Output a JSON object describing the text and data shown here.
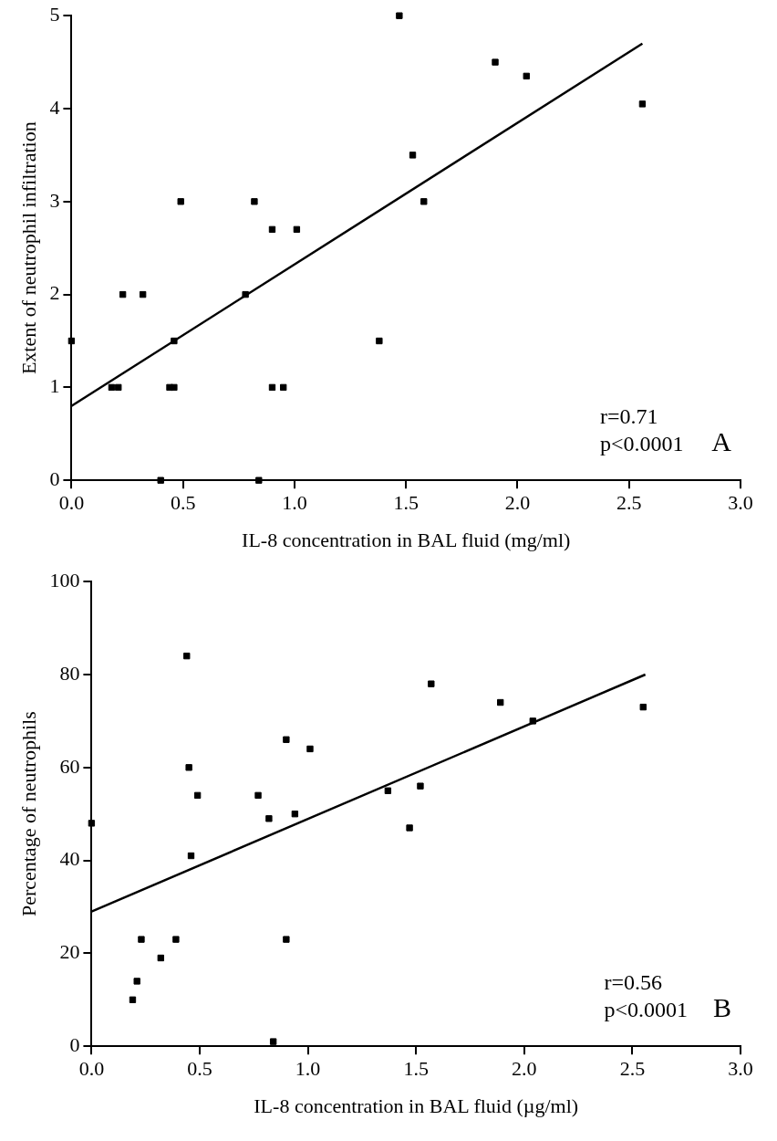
{
  "chart_data": [
    {
      "type": "scatter",
      "xlabel": "IL-8 concentration in BAL fluid (mg/ml)",
      "ylabel": "Extent of neutrophil infiltration",
      "xlim": [
        0,
        3
      ],
      "xticks": [
        {
          "value": 0,
          "label": "0.0"
        },
        {
          "value": 0.5,
          "label": "0.5"
        },
        {
          "value": 1,
          "label": "1.0"
        },
        {
          "value": 1.5,
          "label": "1.5"
        },
        {
          "value": 2,
          "label": "2.0"
        },
        {
          "value": 2.5,
          "label": "2.5"
        },
        {
          "value": 3,
          "label": "3.0"
        }
      ],
      "ylim": [
        0,
        5
      ],
      "yticks": [
        0,
        1,
        2,
        3,
        4,
        5
      ],
      "series": [
        {
          "marker": "square",
          "color": "#000000",
          "x": [
            0,
            0.18,
            0.21,
            0.23,
            0.32,
            0.4,
            0.44,
            0.46,
            0.46,
            0.49,
            0.78,
            0.82,
            0.84,
            0.9,
            0.9,
            0.95,
            1.01,
            1.38,
            1.47,
            1.53,
            1.58,
            1.9,
            2.04,
            2.56
          ],
          "values": [
            1.5,
            1,
            1,
            2,
            2,
            0,
            1,
            1,
            1.5,
            3,
            2,
            3,
            0,
            2.7,
            1,
            1,
            2.7,
            1.5,
            5,
            3.5,
            3,
            4.5,
            4.35,
            4.05
          ]
        },
        {
          "type": "line",
          "marker": "none",
          "color": "#000000",
          "x": [
            0,
            2.56
          ],
          "values": [
            0.8,
            4.7
          ]
        }
      ],
      "annotations": [
        "r=0.71",
        "p<0.0001",
        "A"
      ]
    },
    {
      "type": "scatter",
      "xlabel": "IL-8 concentration in BAL fluid (µg/ml)",
      "ylabel": "Percentage of neutrophils",
      "xlim": [
        0,
        3
      ],
      "xticks": [
        {
          "value": 0,
          "label": "0.0"
        },
        {
          "value": 0.5,
          "label": "0.5"
        },
        {
          "value": 1,
          "label": "1.0"
        },
        {
          "value": 1.5,
          "label": "1.5"
        },
        {
          "value": 2,
          "label": "2.0"
        },
        {
          "value": 2.5,
          "label": "2.5"
        },
        {
          "value": 3,
          "label": "3.0"
        }
      ],
      "ylim": [
        0,
        100
      ],
      "yticks": [
        0,
        20,
        40,
        60,
        80,
        100
      ],
      "series": [
        {
          "marker": "square",
          "color": "#000000",
          "x": [
            0,
            0.19,
            0.21,
            0.23,
            0.32,
            0.39,
            0.44,
            0.45,
            0.46,
            0.49,
            0.77,
            0.82,
            0.84,
            0.9,
            0.9,
            0.94,
            1.01,
            1.37,
            1.47,
            1.52,
            1.57,
            1.89,
            2.04,
            2.55
          ],
          "values": [
            48,
            10,
            14,
            23,
            19,
            23,
            84,
            60,
            41,
            54,
            54,
            49,
            1,
            66,
            23,
            50,
            64,
            55,
            47,
            56,
            78,
            74,
            70,
            73
          ]
        },
        {
          "type": "line",
          "marker": "none",
          "color": "#000000",
          "x": [
            0,
            2.56
          ],
          "values": [
            29,
            80
          ]
        }
      ],
      "annotations": [
        "r=0.56",
        "p<0.0001",
        "B"
      ]
    }
  ]
}
